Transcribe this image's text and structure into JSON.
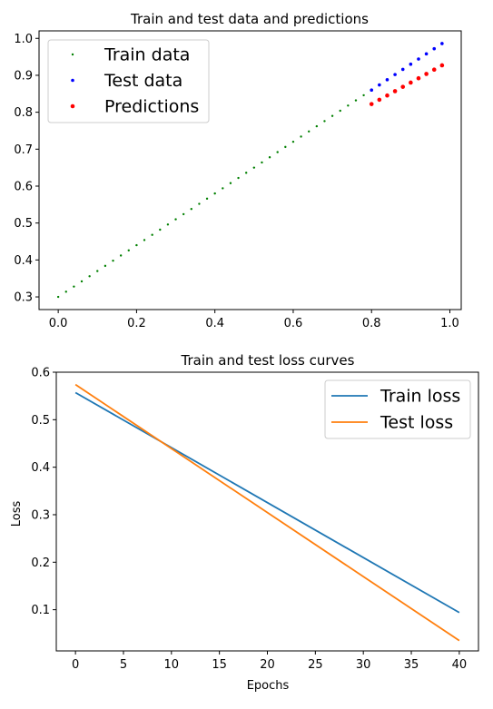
{
  "chart_data": [
    {
      "type": "scatter",
      "title": "Train and test data and predictions",
      "xlabel": "",
      "ylabel": "",
      "xlim": [
        -0.049,
        1.029
      ],
      "ylim": [
        0.2657,
        1.0203
      ],
      "xticks": [
        0.0,
        0.2,
        0.4,
        0.6,
        0.8,
        1.0
      ],
      "xtick_labels": [
        "0.0",
        "0.2",
        "0.4",
        "0.6",
        "0.8",
        "1.0"
      ],
      "yticks": [
        0.3,
        0.4,
        0.5,
        0.6,
        0.7,
        0.8,
        0.9,
        1.0
      ],
      "ytick_labels": [
        "0.3",
        "0.4",
        "0.5",
        "0.6",
        "0.7",
        "0.8",
        "0.9",
        "1.0"
      ],
      "grid": false,
      "legend": "top-left",
      "series": [
        {
          "name": "Train data",
          "color": "#008000",
          "marker_size": 1.2,
          "x": [
            0.0,
            0.02,
            0.04,
            0.06,
            0.08,
            0.1,
            0.12,
            0.14,
            0.16,
            0.18,
            0.2,
            0.22,
            0.24,
            0.26,
            0.28,
            0.3,
            0.32,
            0.34,
            0.36,
            0.38,
            0.4,
            0.42,
            0.44,
            0.46,
            0.48,
            0.5,
            0.52,
            0.54,
            0.56,
            0.58,
            0.6,
            0.62,
            0.64,
            0.66,
            0.68,
            0.7,
            0.72,
            0.74,
            0.76,
            0.78
          ],
          "y": [
            0.3,
            0.314,
            0.328,
            0.342,
            0.356,
            0.37,
            0.384,
            0.398,
            0.412,
            0.426,
            0.44,
            0.454,
            0.468,
            0.482,
            0.496,
            0.51,
            0.524,
            0.538,
            0.552,
            0.566,
            0.58,
            0.594,
            0.608,
            0.622,
            0.636,
            0.65,
            0.664,
            0.678,
            0.692,
            0.706,
            0.72,
            0.734,
            0.748,
            0.762,
            0.776,
            0.79,
            0.804,
            0.818,
            0.832,
            0.846
          ]
        },
        {
          "name": "Test data",
          "color": "#0000ff",
          "marker_size": 1.8,
          "x": [
            0.8,
            0.82,
            0.84,
            0.86,
            0.88,
            0.9,
            0.92,
            0.94,
            0.96,
            0.98
          ],
          "y": [
            0.86,
            0.874,
            0.888,
            0.902,
            0.916,
            0.93,
            0.944,
            0.958,
            0.972,
            0.986
          ]
        },
        {
          "name": "Predictions",
          "color": "#ff0000",
          "marker_size": 2.3,
          "x": [
            0.8,
            0.82,
            0.84,
            0.86,
            0.88,
            0.9,
            0.92,
            0.94,
            0.96,
            0.98
          ],
          "y": [
            0.822,
            0.8337,
            0.8453,
            0.857,
            0.8687,
            0.8803,
            0.892,
            0.9037,
            0.9153,
            0.927
          ]
        }
      ]
    },
    {
      "type": "line",
      "title": "Train and test loss curves",
      "xlabel": "Epochs",
      "ylabel": "Loss",
      "xlim": [
        -2.0,
        42.0
      ],
      "ylim": [
        0.0133,
        0.6
      ],
      "xticks": [
        0,
        5,
        10,
        15,
        20,
        25,
        30,
        35,
        40
      ],
      "xtick_labels": [
        "0",
        "5",
        "10",
        "15",
        "20",
        "25",
        "30",
        "35",
        "40"
      ],
      "yticks": [
        0.1,
        0.2,
        0.3,
        0.4,
        0.5,
        0.6
      ],
      "ytick_labels": [
        "0.1",
        "0.2",
        "0.3",
        "0.4",
        "0.5",
        "0.6"
      ],
      "grid": false,
      "legend": "top-right",
      "series": [
        {
          "name": "Train loss",
          "color": "#1f77b4",
          "x": [
            0,
            40
          ],
          "y": [
            0.557,
            0.094
          ]
        },
        {
          "name": "Test loss",
          "color": "#ff7f0e",
          "x": [
            0,
            40
          ],
          "y": [
            0.574,
            0.035
          ]
        }
      ]
    }
  ]
}
